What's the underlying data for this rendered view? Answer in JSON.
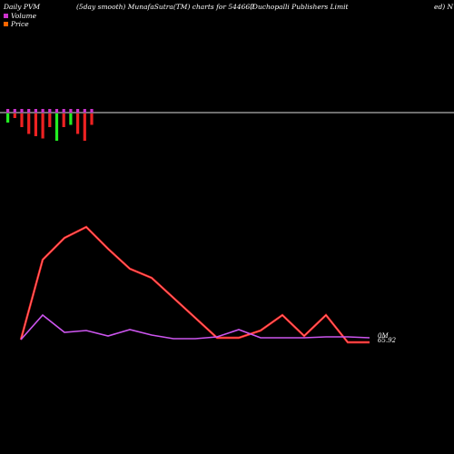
{
  "header": {
    "label1": "Daily PVM",
    "label2": "(5day smooth) MunafaSutra(TM) charts for 544667",
    "label3": "(Duchopalli  Publishers Limit",
    "label4": "ed) N"
  },
  "legend": [
    {
      "name": "Volume",
      "color": "#cc33cc"
    },
    {
      "name": "Price",
      "color": "#ff6600"
    }
  ],
  "chart_data": {
    "type": "line",
    "x": [
      1,
      2,
      3,
      4,
      5,
      6,
      7,
      8,
      9,
      10,
      11,
      12,
      13,
      14,
      15,
      16,
      17
    ],
    "price_series": {
      "name": "Price",
      "color": "#ff2222",
      "values": [
        0,
        88,
        112,
        124,
        100,
        78,
        68,
        46,
        24,
        2,
        2,
        10,
        27,
        4,
        27,
        -3,
        -3
      ]
    },
    "volume_series": {
      "name": "Volume",
      "color": "#cc55ee",
      "values": [
        0,
        27,
        8,
        10,
        4,
        11,
        5,
        1,
        1,
        3,
        11,
        2,
        2,
        2,
        3,
        3,
        2
      ]
    },
    "volume_bars": {
      "values": [
        -0.2,
        -0.1,
        -0.3,
        -0.45,
        -0.5,
        -0.55,
        -0.3,
        -0.6,
        -0.3,
        -0.25,
        -0.45,
        -0.6,
        -0.25
      ],
      "colors": [
        "#22ee22",
        "#ee2222",
        "#ee2222",
        "#ee2222",
        "#ee2222",
        "#ee2222",
        "#ee2222",
        "#22ee22",
        "#ee2222",
        "#22ee22",
        "#ee2222",
        "#ee2222",
        "#ee2222"
      ],
      "top_colors": [
        "#cc33cc",
        "#cc33cc",
        "#cc33cc",
        "#cc33cc",
        "#cc33cc",
        "#cc33cc",
        "#cc33cc",
        "#cc33cc",
        "#cc33cc",
        "#cc33cc",
        "#cc33cc",
        "#cc33cc",
        "#cc33cc"
      ]
    },
    "end_labels": [
      "0M",
      "65.92"
    ]
  }
}
